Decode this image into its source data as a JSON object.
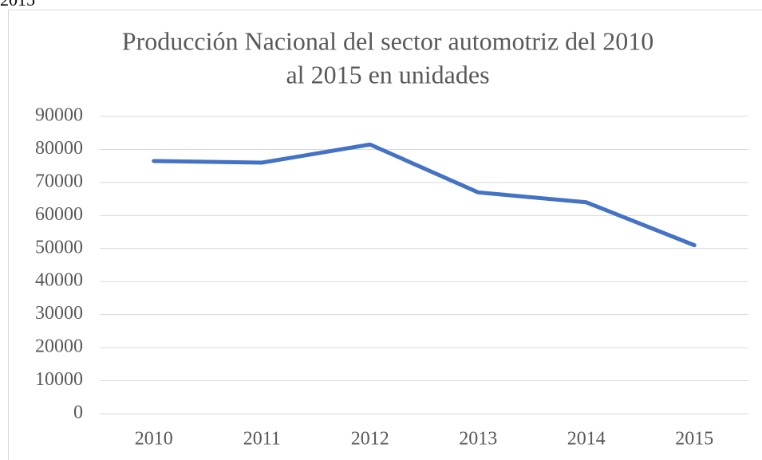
{
  "caption_fragment": "2015",
  "chart_data": {
    "type": "line",
    "title": [
      "Producción Nacional del sector automotriz del 2010",
      "al 2015 en unidades"
    ],
    "categories": [
      "2010",
      "2011",
      "2012",
      "2013",
      "2014",
      "2015"
    ],
    "series": [
      {
        "name": null,
        "color": "#4472c4",
        "values": [
          76500,
          76000,
          81500,
          67000,
          64000,
          51000
        ]
      }
    ],
    "ylim": [
      0,
      90000
    ],
    "yticks": [
      0,
      10000,
      20000,
      30000,
      40000,
      50000,
      60000,
      70000,
      80000,
      90000
    ],
    "grid": true
  }
}
